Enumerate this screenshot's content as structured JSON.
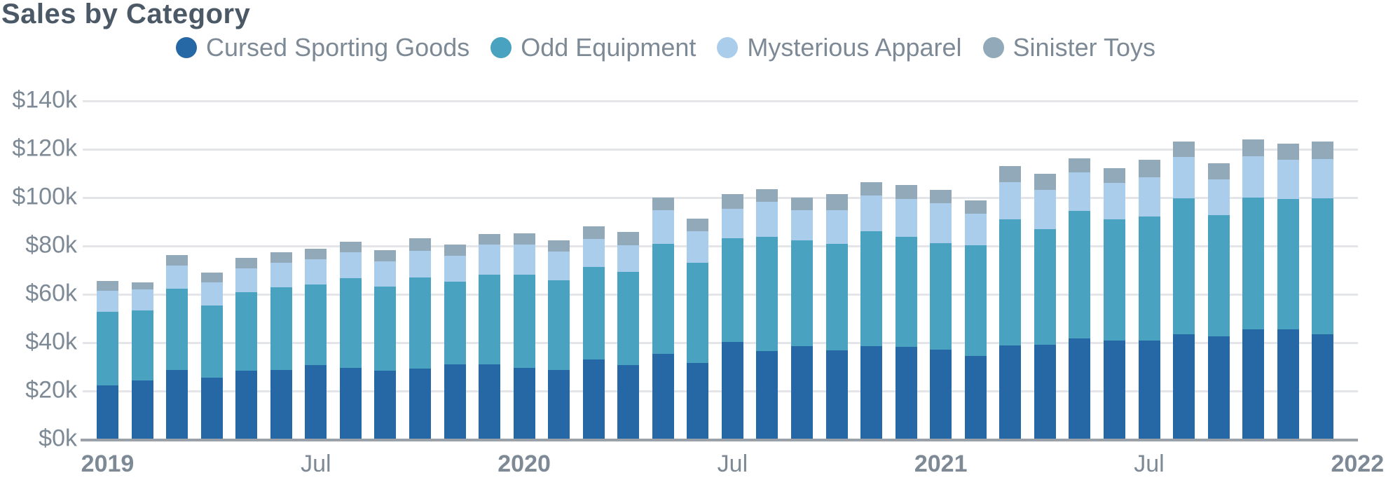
{
  "title": {
    "text": "Sales by Category"
  },
  "colors": {
    "cursed_sporting_goods": "#2667a5",
    "odd_equipment": "#48a2c0",
    "mysterious_apparel": "#aacdec",
    "sinister_toys": "#92a9ba",
    "gridline": "#e4e5e8",
    "axis_line": "#9aa1a8",
    "label_text": "#7d8a96",
    "title_text": "#4b5866"
  },
  "chart_data": {
    "type": "bar",
    "stacked": true,
    "title": "Sales by Category",
    "ylabel": "",
    "value_unit": "USD thousands",
    "ylim": [
      0,
      140
    ],
    "grid": "horizontal",
    "legend_position": "top",
    "categories": [
      "2019-01",
      "2019-02",
      "2019-03",
      "2019-04",
      "2019-05",
      "2019-06",
      "2019-07",
      "2019-08",
      "2019-09",
      "2019-10",
      "2019-11",
      "2019-12",
      "2020-01",
      "2020-02",
      "2020-03",
      "2020-04",
      "2020-05",
      "2020-06",
      "2020-07",
      "2020-08",
      "2020-09",
      "2020-10",
      "2020-11",
      "2020-12",
      "2021-01",
      "2021-02",
      "2021-03",
      "2021-04",
      "2021-05",
      "2021-06",
      "2021-07",
      "2021-08",
      "2021-09",
      "2021-10",
      "2021-11",
      "2021-12"
    ],
    "series": [
      {
        "name": "Cursed Sporting Goods",
        "color": "#2667a5",
        "values": [
          22.4,
          24.3,
          28.8,
          25.6,
          28.5,
          28.8,
          30.7,
          29.5,
          28.5,
          29.2,
          31.1,
          31.1,
          29.7,
          28.7,
          33.1,
          30.6,
          35.5,
          31.6,
          40.3,
          36.4,
          38.5,
          36.9,
          38.5,
          38.2,
          37.0,
          34.5,
          38.8,
          39.1,
          41.7,
          40.8,
          40.8,
          43.5,
          42.7,
          45.6,
          45.4,
          43.5
        ]
      },
      {
        "name": "Odd Equipment",
        "color": "#48a2c0",
        "values": [
          30.3,
          29.0,
          33.5,
          29.7,
          32.4,
          34.2,
          33.4,
          37.2,
          34.8,
          37.8,
          34.1,
          37.0,
          38.4,
          37.2,
          38.1,
          38.7,
          45.4,
          41.5,
          42.8,
          47.5,
          43.8,
          44.0,
          47.5,
          45.7,
          44.2,
          45.9,
          52.2,
          47.9,
          52.8,
          50.2,
          51.5,
          56.2,
          50.1,
          54.4,
          54.1,
          56.2
        ]
      },
      {
        "name": "Mysterious Apparel",
        "color": "#aacdec",
        "values": [
          8.7,
          8.7,
          9.7,
          9.6,
          9.8,
          10.1,
          10.5,
          10.6,
          10.3,
          11.1,
          10.6,
          12.6,
          12.6,
          11.9,
          11.7,
          11.1,
          13.8,
          13.1,
          12.3,
          14.5,
          12.6,
          14.0,
          14.8,
          15.6,
          16.6,
          13.0,
          15.5,
          16.2,
          15.8,
          15.1,
          16.1,
          17.0,
          14.7,
          17.2,
          16.2,
          16.2
        ]
      },
      {
        "name": "Sinister Toys",
        "color": "#92a9ba",
        "values": [
          4.1,
          2.9,
          4.1,
          4.2,
          4.4,
          4.4,
          4.1,
          4.3,
          4.8,
          5.0,
          4.9,
          4.3,
          4.5,
          4.5,
          5.2,
          5.3,
          5.3,
          5.1,
          6.0,
          5.0,
          5.1,
          6.5,
          5.7,
          5.6,
          5.4,
          5.3,
          6.5,
          6.8,
          5.9,
          6.2,
          7.3,
          6.5,
          6.7,
          6.8,
          6.7,
          7.3
        ]
      }
    ],
    "y_ticks": [
      {
        "value": 0,
        "label": "$0k"
      },
      {
        "value": 20,
        "label": "$20k"
      },
      {
        "value": 40,
        "label": "$40k"
      },
      {
        "value": 60,
        "label": "$60k"
      },
      {
        "value": 80,
        "label": "$80k"
      },
      {
        "value": 100,
        "label": "$100k"
      },
      {
        "value": 120,
        "label": "$120k"
      },
      {
        "value": 140,
        "label": "$140k"
      }
    ],
    "x_ticks": [
      {
        "index": 0,
        "label": "2019",
        "bold": true
      },
      {
        "index": 6,
        "label": "Jul",
        "bold": false
      },
      {
        "index": 12,
        "label": "2020",
        "bold": true
      },
      {
        "index": 18,
        "label": "Jul",
        "bold": false
      },
      {
        "index": 24,
        "label": "2021",
        "bold": true
      },
      {
        "index": 30,
        "label": "Jul",
        "bold": false
      },
      {
        "index": 36,
        "label": "2022",
        "bold": true
      }
    ]
  }
}
